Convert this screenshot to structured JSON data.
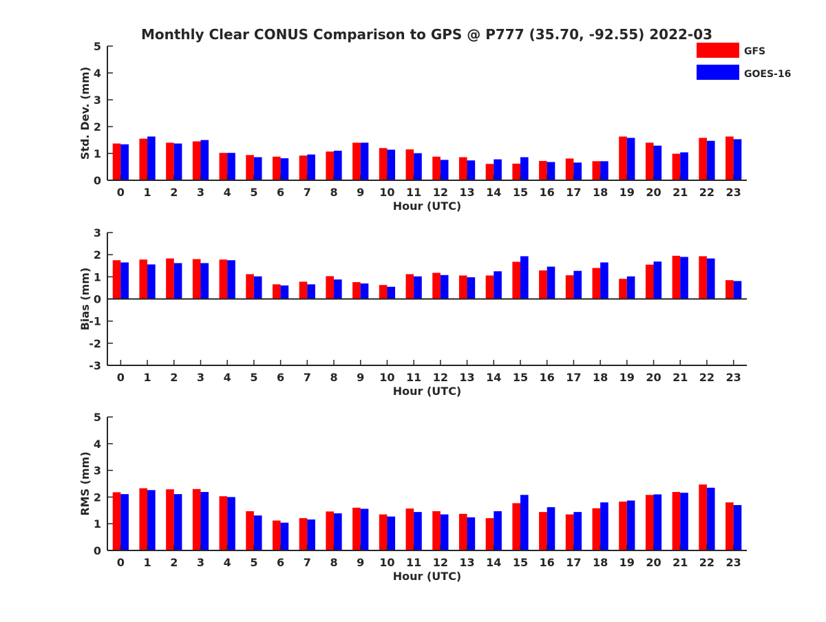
{
  "chart_data": {
    "title": "Monthly Clear CONUS Comparison to GPS @ P777 (35.70, -92.55) 2022-03",
    "legend": {
      "placement": "top-right",
      "entries": [
        {
          "name": "GFS",
          "color": "#ff0000"
        },
        {
          "name": "GOES-16",
          "color": "#0000ff"
        }
      ]
    },
    "panels": [
      {
        "type": "bar",
        "xlabel": "Hour (UTC)",
        "ylabel": "Std. Dev. (mm)",
        "ylim": [
          0,
          5
        ],
        "yticks": [
          "0",
          "1",
          "2",
          "3",
          "4",
          "5"
        ],
        "categories": [
          "0",
          "1",
          "2",
          "3",
          "4",
          "5",
          "6",
          "7",
          "8",
          "9",
          "10",
          "11",
          "12",
          "13",
          "14",
          "15",
          "16",
          "17",
          "18",
          "19",
          "20",
          "21",
          "22",
          "23"
        ],
        "series": [
          {
            "name": "GFS",
            "color": "#ff0000",
            "values": [
              1.37,
              1.55,
              1.4,
              1.45,
              1.02,
              0.94,
              0.88,
              0.92,
              1.07,
              1.4,
              1.2,
              1.15,
              0.88,
              0.86,
              0.61,
              0.62,
              0.72,
              0.81,
              0.71,
              1.63,
              1.4,
              0.99,
              1.58,
              1.63
            ]
          },
          {
            "name": "GOES-16",
            "color": "#0000ff",
            "values": [
              1.34,
              1.63,
              1.37,
              1.5,
              1.02,
              0.86,
              0.82,
              0.96,
              1.1,
              1.4,
              1.14,
              1.01,
              0.76,
              0.74,
              0.78,
              0.86,
              0.68,
              0.66,
              0.71,
              1.58,
              1.29,
              1.04,
              1.47,
              1.53
            ]
          }
        ]
      },
      {
        "type": "bar",
        "xlabel": "Hour (UTC)",
        "ylabel": "Bias (mm)",
        "ylim": [
          -3,
          3
        ],
        "yticks": [
          "-3",
          "-2",
          "-1",
          "0",
          "1",
          "2",
          "3"
        ],
        "categories": [
          "0",
          "1",
          "2",
          "3",
          "4",
          "5",
          "6",
          "7",
          "8",
          "9",
          "10",
          "11",
          "12",
          "13",
          "14",
          "15",
          "16",
          "17",
          "18",
          "19",
          "20",
          "21",
          "22",
          "23"
        ],
        "series": [
          {
            "name": "GFS",
            "color": "#ff0000",
            "values": [
              1.75,
              1.78,
              1.83,
              1.8,
              1.78,
              1.12,
              0.66,
              0.78,
              1.03,
              0.76,
              0.63,
              1.12,
              1.18,
              1.06,
              1.06,
              1.68,
              1.29,
              1.07,
              1.4,
              0.91,
              1.55,
              1.95,
              1.93,
              0.85
            ]
          },
          {
            "name": "GOES-16",
            "color": "#0000ff",
            "values": [
              1.65,
              1.56,
              1.62,
              1.62,
              1.75,
              1.02,
              0.61,
              0.66,
              0.88,
              0.7,
              0.55,
              1.02,
              1.08,
              0.98,
              1.25,
              1.93,
              1.46,
              1.27,
              1.65,
              1.02,
              1.69,
              1.9,
              1.83,
              0.81
            ]
          }
        ]
      },
      {
        "type": "bar",
        "xlabel": "Hour (UTC)",
        "ylabel": "RMS (mm)",
        "ylim": [
          0,
          5
        ],
        "yticks": [
          "0",
          "1",
          "2",
          "3",
          "4",
          "5"
        ],
        "categories": [
          "0",
          "1",
          "2",
          "3",
          "4",
          "5",
          "6",
          "7",
          "8",
          "9",
          "10",
          "11",
          "12",
          "13",
          "14",
          "15",
          "16",
          "17",
          "18",
          "19",
          "20",
          "21",
          "22",
          "23"
        ],
        "series": [
          {
            "name": "GFS",
            "color": "#ff0000",
            "values": [
              2.18,
              2.33,
              2.29,
              2.3,
              2.03,
              1.47,
              1.12,
              1.21,
              1.46,
              1.6,
              1.35,
              1.57,
              1.47,
              1.37,
              1.21,
              1.77,
              1.44,
              1.35,
              1.58,
              1.83,
              2.08,
              2.19,
              2.47,
              1.8
            ]
          },
          {
            "name": "GOES-16",
            "color": "#0000ff",
            "values": [
              2.11,
              2.26,
              2.11,
              2.19,
              2.0,
              1.31,
              1.04,
              1.16,
              1.39,
              1.56,
              1.27,
              1.44,
              1.35,
              1.24,
              1.47,
              2.08,
              1.62,
              1.44,
              1.8,
              1.87,
              2.1,
              2.16,
              2.35,
              1.7
            ]
          }
        ]
      }
    ]
  }
}
